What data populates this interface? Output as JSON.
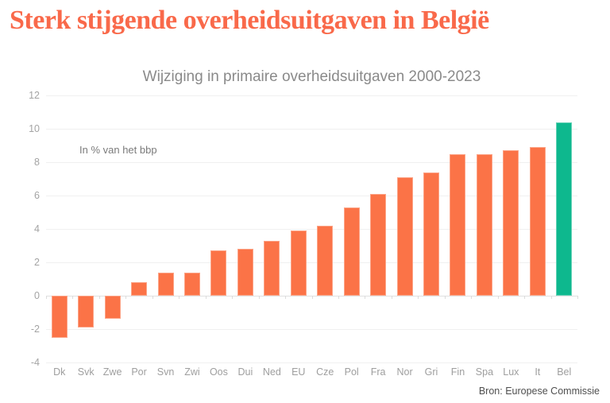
{
  "page": {
    "title": "Sterk stijgende overheidsuitgaven in België",
    "title_color": "#f9694a",
    "background": "#ffffff"
  },
  "chart_data": {
    "type": "bar",
    "title": "Wijziging in primaire overheidsuitgaven 2000-2023",
    "annotation": "In % van het bbp",
    "source": "Bron: Europese Commissie",
    "categories": [
      "Dk",
      "Svk",
      "Zwe",
      "Por",
      "Svn",
      "Zwi",
      "Oos",
      "Dui",
      "Ned",
      "EU",
      "Cze",
      "Pol",
      "Fra",
      "Nor",
      "Gri",
      "Fin",
      "Spa",
      "Lux",
      "It",
      "Bel"
    ],
    "values": [
      -2.5,
      -1.9,
      -1.4,
      0.8,
      1.4,
      1.4,
      2.7,
      2.8,
      3.3,
      3.9,
      4.2,
      5.3,
      6.1,
      7.1,
      7.4,
      8.5,
      8.5,
      8.7,
      8.9,
      10.4
    ],
    "highlight_category": "Bel",
    "bar_color": "#fb7347",
    "highlight_color": "#0eb88e",
    "ylabel": "",
    "xlabel": "",
    "ylim": [
      -4,
      12
    ],
    "yticks": [
      12,
      10,
      8,
      6,
      4,
      2,
      0,
      -2,
      -4
    ],
    "grid": true,
    "legend": "none"
  }
}
